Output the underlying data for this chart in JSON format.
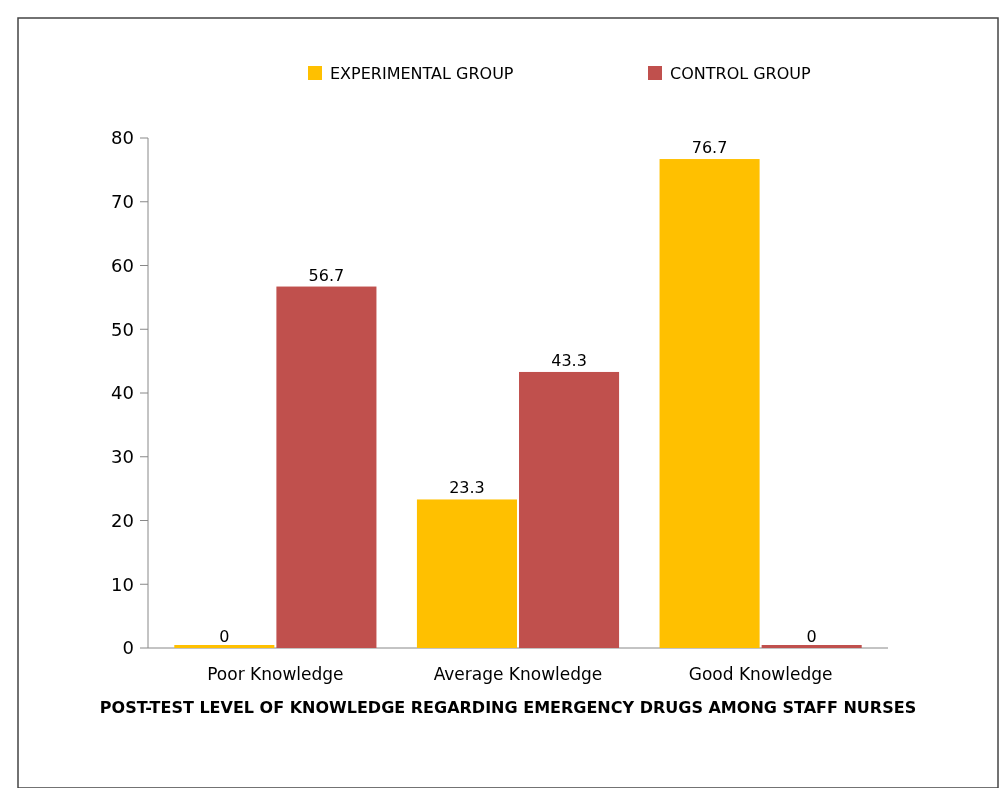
{
  "chart_data": {
    "type": "bar",
    "title": "POST-TEST LEVEL OF KNOWLEDGE REGARDING EMERGENCY DRUGS AMONG STAFF NURSES",
    "categories": [
      "Poor Knowledge",
      "Average Knowledge",
      "Good Knowledge"
    ],
    "series": [
      {
        "name": "EXPERIMENTAL GROUP",
        "color": "#ffc000",
        "values": [
          0,
          23.3,
          76.7
        ]
      },
      {
        "name": "CONTROL GROUP",
        "color": "#c0504d",
        "values": [
          56.7,
          43.3,
          0
        ]
      }
    ],
    "ylim": [
      0,
      80
    ],
    "yticks": [
      0,
      10,
      20,
      30,
      40,
      50,
      60,
      70,
      80
    ],
    "data_labels": true,
    "legend": "top",
    "grid": false
  }
}
